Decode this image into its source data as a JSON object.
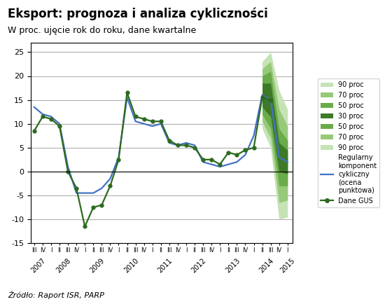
{
  "chart_data": {
    "type": "line",
    "title": "Eksport: prognoza i analiza cykliczności",
    "subtitle": "W proc. ujęcie rok do roku, dane kwartalne",
    "source": "Źródło: Raport ISR, PARP",
    "series": [
      {
        "name": "Regularny\nkomponent\ncykliczny\n(ocena\npunktowa)",
        "color": "#4472c4",
        "x": [
          2007.5,
          2007.75,
          2008.0,
          2008.25,
          2008.5,
          2008.75,
          2009.0,
          2009.25,
          2009.5,
          2009.75,
          2010.0,
          2010.25,
          2010.5,
          2010.75,
          2011.0,
          2011.25,
          2011.5,
          2011.75,
          2012.0,
          2012.25,
          2012.5,
          2012.75,
          2013.0,
          2013.25,
          2013.5,
          2013.75,
          2014.0,
          2014.25,
          2014.5,
          2014.75,
          2015.0
        ],
        "values": [
          13.5,
          12.0,
          11.5,
          10.0,
          1.0,
          -4.5,
          -4.5,
          -4.5,
          -3.5,
          -1.5,
          3.0,
          15.5,
          10.5,
          10.0,
          9.5,
          10.0,
          6.0,
          5.5,
          6.0,
          5.5,
          2.0,
          1.5,
          1.0,
          1.5,
          2.0,
          3.5,
          7.5,
          16.0,
          15.0,
          3.0,
          2.0
        ]
      },
      {
        "name": "Dane GUS",
        "color": "#2d6a1f",
        "marker": "o",
        "x": [
          2007.5,
          2007.75,
          2008.0,
          2008.25,
          2008.5,
          2008.75,
          2009.0,
          2009.25,
          2009.5,
          2009.75,
          2010.0,
          2010.25,
          2010.5,
          2010.75,
          2011.0,
          2011.25,
          2011.5,
          2011.75,
          2012.0,
          2012.25,
          2012.5,
          2012.75,
          2013.0,
          2013.25,
          2013.5,
          2013.75,
          2014.0,
          2014.25,
          2014.5
        ],
        "values": [
          8.5,
          11.5,
          11.0,
          9.5,
          0.0,
          -3.5,
          -11.5,
          -7.5,
          -7.0,
          -3.0,
          2.5,
          16.5,
          11.5,
          11.0,
          10.5,
          10.5,
          6.5,
          5.5,
          5.5,
          5.0,
          2.5,
          2.5,
          1.5,
          4.0,
          3.5,
          4.5,
          5.0,
          15.5,
          15.0
        ]
      }
    ],
    "fan": {
      "x": [
        2014.25,
        2014.5,
        2014.75,
        2015.0
      ],
      "bands": [
        {
          "name": "90 proc",
          "color": "#c5e3b5",
          "lower": [
            9.0,
            5.0,
            -10.0,
            -9.5
          ],
          "upper": [
            23.0,
            25.0,
            17.0,
            13.0
          ]
        },
        {
          "name": "70 proc",
          "color": "#96c97a",
          "lower": [
            10.5,
            7.0,
            -6.5,
            -6.0
          ],
          "upper": [
            21.5,
            23.0,
            13.0,
            9.5
          ]
        },
        {
          "name": "50 proc",
          "color": "#6aab4a",
          "lower": [
            12.0,
            9.0,
            -3.0,
            -3.0
          ],
          "upper": [
            20.0,
            21.0,
            9.0,
            6.5
          ]
        },
        {
          "name": "30 proc",
          "color": "#3d7a28",
          "lower": [
            13.5,
            11.5,
            0.0,
            -0.5
          ],
          "upper": [
            18.5,
            18.5,
            6.0,
            4.5
          ]
        }
      ]
    },
    "band_legend": [
      "90 proc",
      "70 proc",
      "50 proc",
      "30 proc",
      "50 proc",
      "70 proc",
      "90 proc"
    ],
    "xlim": [
      2007.4,
      2015.15
    ],
    "xticks": [
      {
        "value": 2007.5,
        "label": "III"
      },
      {
        "value": 2007.75,
        "label": "IV"
      },
      {
        "value": 2008.0,
        "label": "I"
      },
      {
        "value": 2008.25,
        "label": "II"
      },
      {
        "value": 2008.5,
        "label": "III"
      },
      {
        "value": 2008.75,
        "label": "IV"
      },
      {
        "value": 2009.0,
        "label": "I"
      },
      {
        "value": 2009.25,
        "label": "II"
      },
      {
        "value": 2009.5,
        "label": "III"
      },
      {
        "value": 2009.75,
        "label": "IV"
      },
      {
        "value": 2010.0,
        "label": "I"
      },
      {
        "value": 2010.25,
        "label": "II"
      },
      {
        "value": 2010.5,
        "label": "III"
      },
      {
        "value": 2010.75,
        "label": "IV"
      },
      {
        "value": 2011.0,
        "label": "I"
      },
      {
        "value": 2011.25,
        "label": "II"
      },
      {
        "value": 2011.5,
        "label": "III"
      },
      {
        "value": 2011.75,
        "label": "IV"
      },
      {
        "value": 2012.0,
        "label": "I"
      },
      {
        "value": 2012.25,
        "label": "II"
      },
      {
        "value": 2012.5,
        "label": "III"
      },
      {
        "value": 2012.75,
        "label": "IV"
      },
      {
        "value": 2013.0,
        "label": "I"
      },
      {
        "value": 2013.25,
        "label": "II"
      },
      {
        "value": 2013.5,
        "label": "III"
      },
      {
        "value": 2013.75,
        "label": "IV"
      },
      {
        "value": 2014.0,
        "label": "I"
      },
      {
        "value": 2014.25,
        "label": "II"
      },
      {
        "value": 2014.5,
        "label": "III"
      },
      {
        "value": 2014.75,
        "label": "IV"
      },
      {
        "value": 2015.0,
        "label": "I"
      }
    ],
    "annotations": [
      {
        "x": 2007.62,
        "text": "2007"
      },
      {
        "x": 2008.375,
        "text": "2008"
      },
      {
        "x": 2009.375,
        "text": "2009"
      },
      {
        "x": 2010.375,
        "text": "2010"
      },
      {
        "x": 2011.375,
        "text": "2011"
      },
      {
        "x": 2012.375,
        "text": "2012"
      },
      {
        "x": 2013.375,
        "text": "2013"
      },
      {
        "x": 2014.375,
        "text": "2014"
      },
      {
        "x": 2015.0,
        "text": "2015"
      }
    ],
    "ylim": [
      -15,
      27
    ],
    "yticks": [
      -15,
      -10,
      -5,
      0,
      5,
      10,
      15,
      20,
      25
    ],
    "hline": 0,
    "grid": true,
    "legend": "right"
  }
}
